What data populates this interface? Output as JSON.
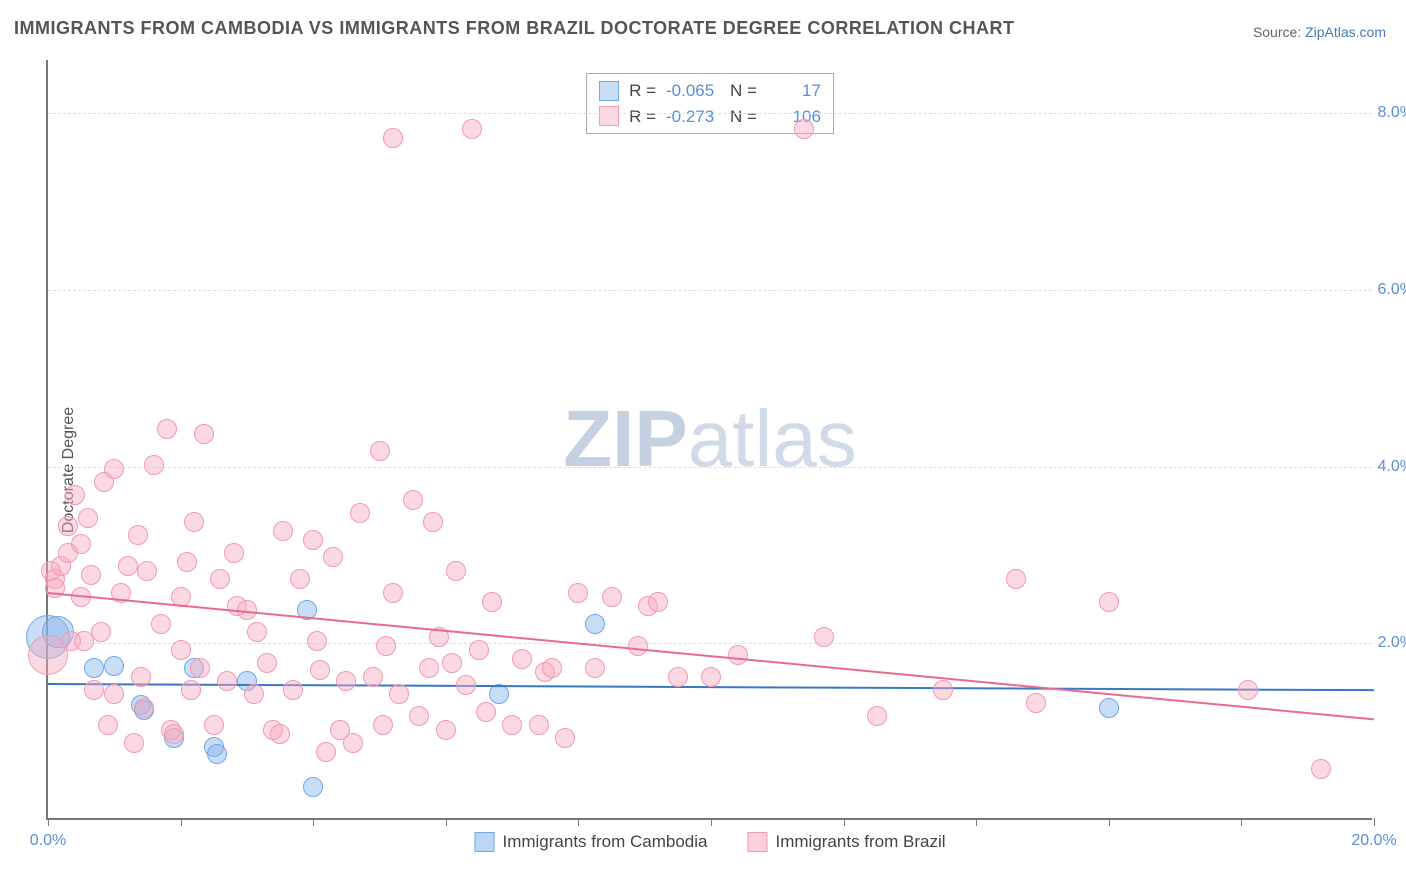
{
  "title": "IMMIGRANTS FROM CAMBODIA VS IMMIGRANTS FROM BRAZIL DOCTORATE DEGREE CORRELATION CHART",
  "source_label": "Source:",
  "source_name": "ZipAtlas.com",
  "watermark_zip": "ZIP",
  "watermark_atlas": "atlas",
  "ylabel": "Doctorate Degree",
  "chart": {
    "type": "scatter",
    "xlim": [
      0,
      20
    ],
    "ylim": [
      0,
      8.6
    ],
    "xtick_positions": [
      0,
      2,
      4,
      6,
      8,
      10,
      12,
      14,
      16,
      18,
      20
    ],
    "xtick_labels": {
      "0": "0.0%",
      "20": "20.0%"
    },
    "ytick_positions": [
      2,
      4,
      6,
      8
    ],
    "ytick_labels": [
      "2.0%",
      "4.0%",
      "6.0%",
      "8.0%"
    ],
    "grid_color": "#dddddd",
    "axis_color": "#777777",
    "background_color": "#ffffff",
    "tick_label_color": "#5a8fd6",
    "marker_radius": 10,
    "series": [
      {
        "name": "Immigrants from Cambodia",
        "fill": "rgba(135,180,235,0.45)",
        "stroke": "#6da8e8",
        "line_color": "#3a77c9",
        "R": "-0.065",
        "N": "17",
        "regression": {
          "x1": 0,
          "y1": 1.55,
          "x2": 20,
          "y2": 1.48
        },
        "points": [
          [
            0.0,
            2.05,
            22
          ],
          [
            0.15,
            2.1,
            16
          ],
          [
            0.7,
            1.7
          ],
          [
            1.0,
            1.72
          ],
          [
            1.4,
            1.28
          ],
          [
            1.45,
            1.22
          ],
          [
            1.9,
            0.9
          ],
          [
            2.2,
            1.7
          ],
          [
            2.5,
            0.8
          ],
          [
            2.55,
            0.72
          ],
          [
            3.0,
            1.55
          ],
          [
            3.9,
            2.35
          ],
          [
            4.0,
            0.35
          ],
          [
            6.8,
            1.4
          ],
          [
            8.25,
            2.2
          ],
          [
            16.0,
            1.25
          ]
        ]
      },
      {
        "name": "Immigrants from Brazil",
        "fill": "rgba(248,170,190,0.45)",
        "stroke": "#f19ab2",
        "line_color": "#e96b8f",
        "R": "-0.273",
        "N": "106",
        "regression": {
          "x1": 0,
          "y1": 2.58,
          "x2": 20,
          "y2": 1.15
        },
        "points": [
          [
            0.0,
            1.85,
            20
          ],
          [
            0.05,
            2.8
          ],
          [
            0.1,
            2.7
          ],
          [
            0.1,
            2.6
          ],
          [
            0.2,
            2.85
          ],
          [
            0.3,
            3.0
          ],
          [
            0.3,
            3.3
          ],
          [
            0.35,
            2.0
          ],
          [
            0.4,
            3.65
          ],
          [
            0.5,
            3.1
          ],
          [
            0.5,
            2.5
          ],
          [
            0.55,
            2.0
          ],
          [
            0.6,
            3.4
          ],
          [
            0.65,
            2.75
          ],
          [
            0.7,
            1.45
          ],
          [
            0.8,
            2.1
          ],
          [
            0.85,
            3.8
          ],
          [
            0.9,
            1.05
          ],
          [
            1.0,
            1.4
          ],
          [
            1.0,
            3.95
          ],
          [
            1.1,
            2.55
          ],
          [
            1.2,
            2.85
          ],
          [
            1.3,
            0.85
          ],
          [
            1.35,
            3.2
          ],
          [
            1.4,
            1.6
          ],
          [
            1.45,
            1.25
          ],
          [
            1.5,
            2.8
          ],
          [
            1.6,
            4.0
          ],
          [
            1.7,
            2.2
          ],
          [
            1.8,
            4.4
          ],
          [
            1.85,
            1.0
          ],
          [
            1.9,
            0.95
          ],
          [
            2.0,
            2.5
          ],
          [
            2.0,
            1.9
          ],
          [
            2.1,
            2.9
          ],
          [
            2.15,
            1.45
          ],
          [
            2.2,
            3.35
          ],
          [
            2.3,
            1.7
          ],
          [
            2.35,
            4.35
          ],
          [
            2.5,
            1.05
          ],
          [
            2.6,
            2.7
          ],
          [
            2.7,
            1.55
          ],
          [
            2.8,
            3.0
          ],
          [
            2.85,
            2.4
          ],
          [
            3.0,
            2.35
          ],
          [
            3.1,
            1.4
          ],
          [
            3.15,
            2.1
          ],
          [
            3.3,
            1.75
          ],
          [
            3.4,
            1.0
          ],
          [
            3.5,
            0.95
          ],
          [
            3.55,
            3.25
          ],
          [
            3.7,
            1.45
          ],
          [
            3.8,
            2.7
          ],
          [
            4.0,
            3.15
          ],
          [
            4.05,
            2.0
          ],
          [
            4.1,
            1.68
          ],
          [
            4.2,
            0.75
          ],
          [
            4.3,
            2.95
          ],
          [
            4.4,
            1.0
          ],
          [
            4.5,
            1.55
          ],
          [
            4.6,
            0.85
          ],
          [
            4.7,
            3.45
          ],
          [
            4.9,
            1.6
          ],
          [
            5.0,
            4.15
          ],
          [
            5.05,
            1.05
          ],
          [
            5.1,
            1.95
          ],
          [
            5.2,
            7.7
          ],
          [
            5.2,
            2.55
          ],
          [
            5.3,
            1.4
          ],
          [
            5.5,
            3.6
          ],
          [
            5.6,
            1.15
          ],
          [
            5.75,
            1.7
          ],
          [
            5.8,
            3.35
          ],
          [
            5.9,
            2.05
          ],
          [
            6.0,
            1.0
          ],
          [
            6.1,
            1.75
          ],
          [
            6.15,
            2.8
          ],
          [
            6.3,
            1.5
          ],
          [
            6.4,
            7.8
          ],
          [
            6.5,
            1.9
          ],
          [
            6.6,
            1.2
          ],
          [
            6.7,
            2.45
          ],
          [
            7.0,
            1.05
          ],
          [
            7.15,
            1.8
          ],
          [
            7.4,
            1.05
          ],
          [
            7.5,
            1.65
          ],
          [
            7.6,
            1.7
          ],
          [
            7.8,
            0.9
          ],
          [
            8.0,
            2.55
          ],
          [
            8.25,
            1.7
          ],
          [
            8.5,
            2.5
          ],
          [
            8.9,
            1.95
          ],
          [
            9.05,
            2.4
          ],
          [
            9.2,
            2.45
          ],
          [
            9.5,
            1.6
          ],
          [
            10.0,
            1.6
          ],
          [
            10.4,
            1.85
          ],
          [
            11.4,
            7.8
          ],
          [
            11.7,
            2.05
          ],
          [
            12.5,
            1.15
          ],
          [
            13.5,
            1.45
          ],
          [
            14.6,
            2.7
          ],
          [
            14.9,
            1.3
          ],
          [
            16.0,
            2.45
          ],
          [
            18.1,
            1.45
          ],
          [
            19.2,
            0.55
          ]
        ]
      }
    ]
  },
  "legend_bottom": [
    {
      "label": "Immigrants from Cambodia",
      "fill": "rgba(135,180,235,0.55)",
      "stroke": "#6da8e8"
    },
    {
      "label": "Immigrants from Brazil",
      "fill": "rgba(248,170,190,0.55)",
      "stroke": "#f19ab2"
    }
  ],
  "stats_labels": {
    "r": "R =",
    "n": "N ="
  }
}
